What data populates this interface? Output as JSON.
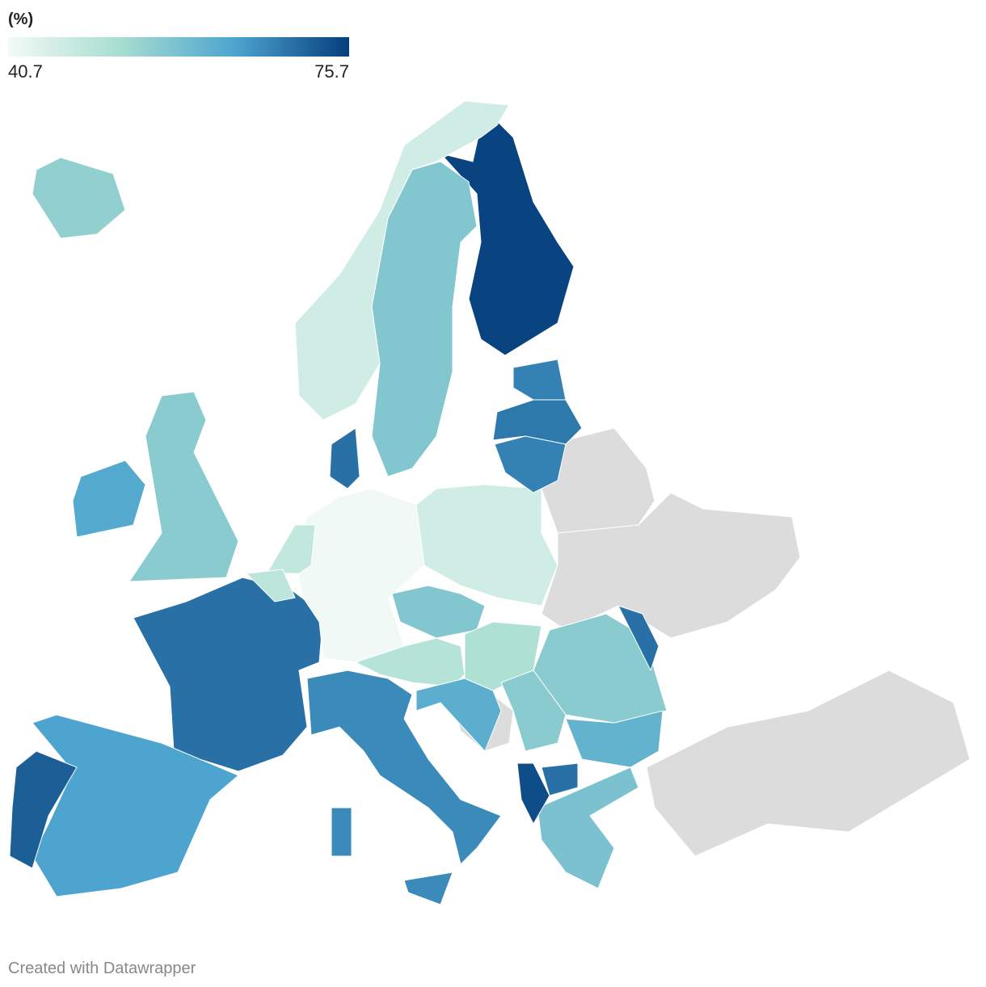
{
  "chart_data": {
    "type": "choropleth",
    "legend_title": "(%)",
    "scale": [
      40.7,
      75.7
    ],
    "scale_labels": [
      "40.7",
      "75.7"
    ],
    "colors": [
      "#f2faf6",
      "#a6ddd0",
      "#4ca4cf",
      "#053e7c"
    ],
    "no_data_color": "#dcdcdc",
    "values": [
      75,
      57,
      46,
      55,
      56,
      63,
      70,
      64,
      72,
      41,
      46,
      67,
      67,
      67,
      57,
      50,
      51,
      56,
      61,
      58,
      68,
      69,
      68,
      70,
      48,
      49,
      56,
      62,
      74,
      70,
      70
    ],
    "credit": "Created with Datawrapper"
  }
}
